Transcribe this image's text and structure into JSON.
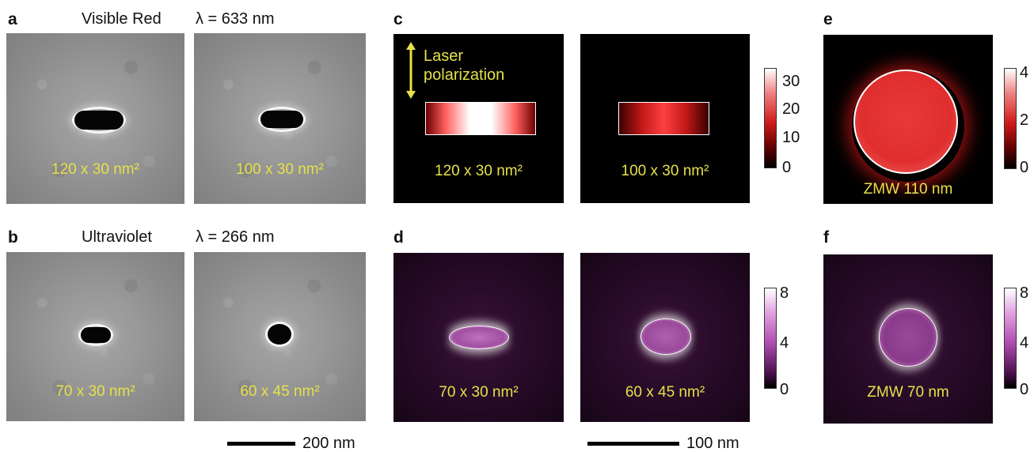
{
  "panels": {
    "a": {
      "letter": "a",
      "title": "Visible Red",
      "wavelength": "λ = 633 nm",
      "images": [
        {
          "label": "120 x 30 nm²"
        },
        {
          "label": "100 x 30 nm²"
        }
      ]
    },
    "b": {
      "letter": "b",
      "title": "Ultraviolet",
      "wavelength": "λ = 266 nm",
      "images": [
        {
          "label": "70 x 30 nm²"
        },
        {
          "label": "60 x 45 nm²"
        }
      ]
    },
    "c": {
      "letter": "c",
      "polarization_label_line1": "Laser",
      "polarization_label_line2": "polarization",
      "images": [
        {
          "label": "120 x 30 nm²"
        },
        {
          "label": "100 x 30 nm²"
        }
      ],
      "colorbar_ticks": [
        "30",
        "20",
        "10",
        "0"
      ],
      "colorbar_colors": [
        "#ffffff",
        "#d01818",
        "#000000"
      ]
    },
    "d": {
      "letter": "d",
      "images": [
        {
          "label": "70 x 30 nm²"
        },
        {
          "label": "60 x 45 nm²"
        }
      ],
      "colorbar_ticks": [
        "8",
        "4",
        "0"
      ],
      "colorbar_colors": [
        "#ffffff",
        "#b04cb0",
        "#000000"
      ]
    },
    "e": {
      "letter": "e",
      "image_label": "ZMW 110 nm",
      "colorbar_ticks": [
        "4",
        "2",
        "0"
      ]
    },
    "f": {
      "letter": "f",
      "image_label": "ZMW 70 nm",
      "colorbar_ticks": [
        "8",
        "4",
        "0"
      ]
    }
  },
  "scalebars": {
    "sem": "200 nm",
    "sim": "100 nm"
  },
  "colors": {
    "label_yellow": "#e6e04a",
    "polarization_arrow": "#e6e04a"
  }
}
